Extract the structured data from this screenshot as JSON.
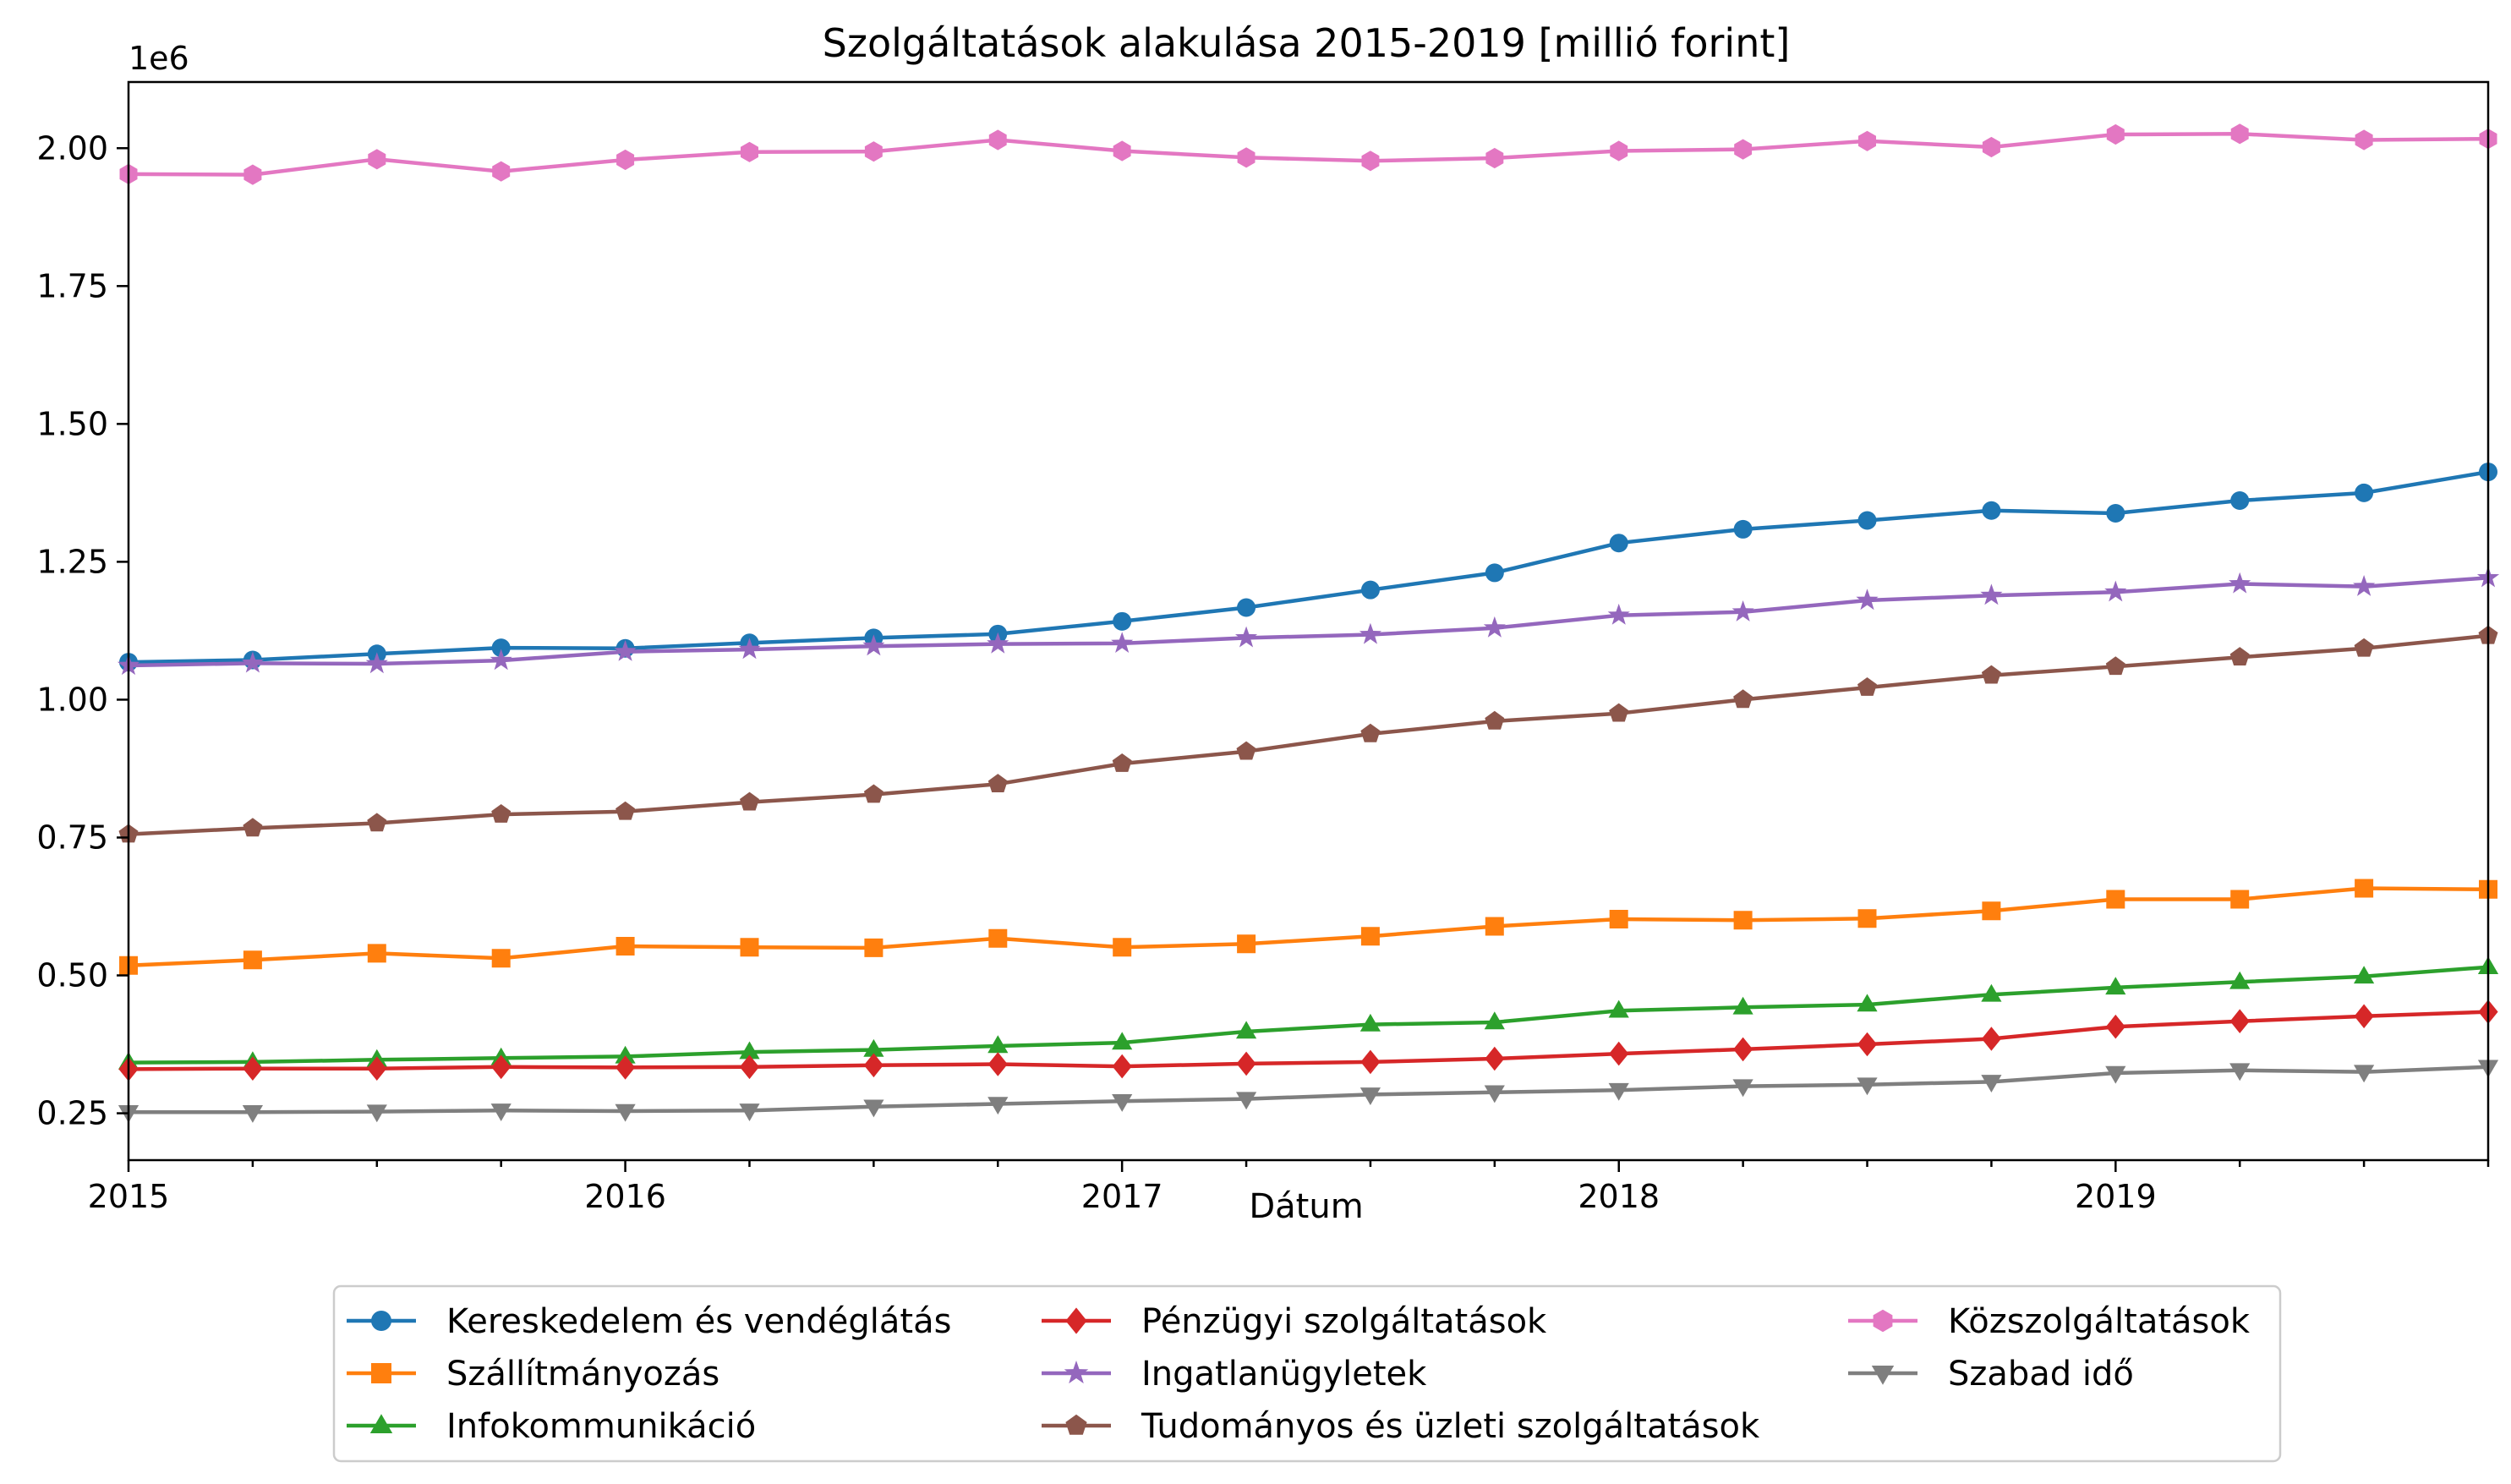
{
  "chart_data": {
    "type": "line",
    "title": "Szolgáltatások alakulása 2015-2019 [millió forint]",
    "xlabel": "Dátum",
    "ylabel": "",
    "y_offset_label": "1e6",
    "x_ticks": [
      "2015",
      "2016",
      "2017",
      "2018",
      "2019"
    ],
    "y_ticks": [
      "0.25",
      "0.50",
      "0.75",
      "1.00",
      "1.25",
      "1.50",
      "1.75",
      "2.00"
    ],
    "x_range": [
      "2015Q1",
      "2019Q4"
    ],
    "ylim": [
      165000,
      2120000
    ],
    "grid": false,
    "legend_position": "bottom-center, below axes, 3 columns",
    "x": [
      "2015Q1",
      "2015Q2",
      "2015Q3",
      "2015Q4",
      "2016Q1",
      "2016Q2",
      "2016Q3",
      "2016Q4",
      "2017Q1",
      "2017Q2",
      "2017Q3",
      "2017Q4",
      "2018Q1",
      "2018Q2",
      "2018Q3",
      "2018Q4",
      "2019Q1",
      "2019Q2",
      "2019Q3",
      "2019Q4"
    ],
    "series": [
      {
        "name": "Kereskedelem és vendéglátás",
        "color": "#1f77b4",
        "marker": "circle",
        "values": [
          1068000,
          1072000,
          1083000,
          1094000,
          1093000,
          1103000,
          1112000,
          1119000,
          1142000,
          1167000,
          1199000,
          1230000,
          1284000,
          1309000,
          1325000,
          1343000,
          1338000,
          1361000,
          1375000,
          1413000
        ]
      },
      {
        "name": "Szállítmányozás",
        "color": "#ff7f0e",
        "marker": "square",
        "values": [
          518000,
          528000,
          540000,
          531000,
          553000,
          551000,
          550000,
          567000,
          551000,
          557000,
          571000,
          589000,
          602000,
          600000,
          603000,
          617000,
          638000,
          638000,
          658000,
          656000
        ]
      },
      {
        "name": "Infokommunikáció",
        "color": "#2ca02c",
        "marker": "triangle-up",
        "values": [
          342000,
          343000,
          347000,
          350000,
          353000,
          361000,
          365000,
          372000,
          378000,
          398000,
          411000,
          415000,
          436000,
          442000,
          447000,
          465000,
          478000,
          488000,
          498000,
          515000
        ]
      },
      {
        "name": "Pénzügyi szolgáltatások",
        "color": "#d62728",
        "marker": "diamond",
        "values": [
          330000,
          331000,
          331000,
          334000,
          333000,
          334000,
          337000,
          339000,
          335000,
          340000,
          343000,
          349000,
          358000,
          366000,
          375000,
          385000,
          407000,
          417000,
          426000,
          434000
        ]
      },
      {
        "name": "Ingatlanügyletek",
        "color": "#9467bd",
        "marker": "star",
        "values": [
          1062000,
          1066000,
          1065000,
          1071000,
          1087000,
          1091000,
          1097000,
          1101000,
          1102000,
          1112000,
          1118000,
          1130000,
          1153000,
          1159000,
          1180000,
          1189000,
          1195000,
          1210000,
          1205000,
          1221000
        ]
      },
      {
        "name": "Tudományos és üzleti szolgáltatások",
        "color": "#8c564b",
        "marker": "pentagon",
        "values": [
          756000,
          767000,
          776000,
          792000,
          797000,
          814000,
          828000,
          847000,
          884000,
          906000,
          938000,
          961000,
          975000,
          1000000,
          1022000,
          1044000,
          1060000,
          1077000,
          1093000,
          1116000
        ]
      },
      {
        "name": "Közszolgáltatások",
        "color": "#e377c2",
        "marker": "hexagon",
        "values": [
          1953000,
          1952000,
          1980000,
          1958000,
          1979000,
          1993000,
          1994000,
          2015000,
          1995000,
          1983000,
          1977000,
          1982000,
          1995000,
          1998000,
          2013000,
          2002000,
          2025000,
          2026000,
          2015000,
          2017000
        ]
      },
      {
        "name": "Szabad idő",
        "color": "#7f7f7f",
        "marker": "triangle-down",
        "values": [
          252000,
          252000,
          253000,
          255000,
          254000,
          255000,
          262000,
          267000,
          272000,
          276000,
          284000,
          288000,
          292000,
          299000,
          302000,
          307000,
          323000,
          328000,
          325000,
          334000
        ]
      }
    ]
  }
}
